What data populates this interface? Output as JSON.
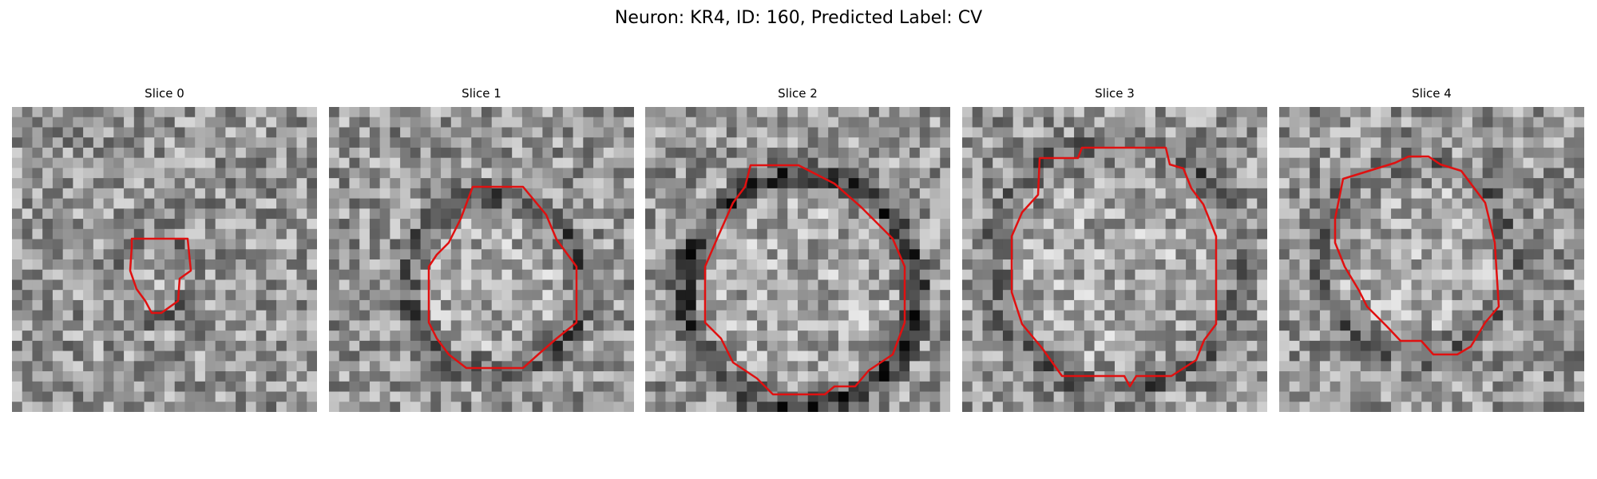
{
  "figure": {
    "title": "Neuron: KR4, ID: 160, Predicted Label: CV",
    "contour_color": "#e01010",
    "colormap": "grayscale"
  },
  "panels": [
    {
      "title": "Slice 0",
      "contour_kind": "small blob",
      "darkness": 0.25
    },
    {
      "title": "Slice 1",
      "contour_kind": "octagon",
      "darkness": 0.5
    },
    {
      "title": "Slice 2",
      "contour_kind": "octagon",
      "darkness": 0.75
    },
    {
      "title": "Slice 3",
      "contour_kind": "octagon",
      "darkness": 0.4
    },
    {
      "title": "Slice 4",
      "contour_kind": "octagon",
      "darkness": 0.3
    }
  ]
}
